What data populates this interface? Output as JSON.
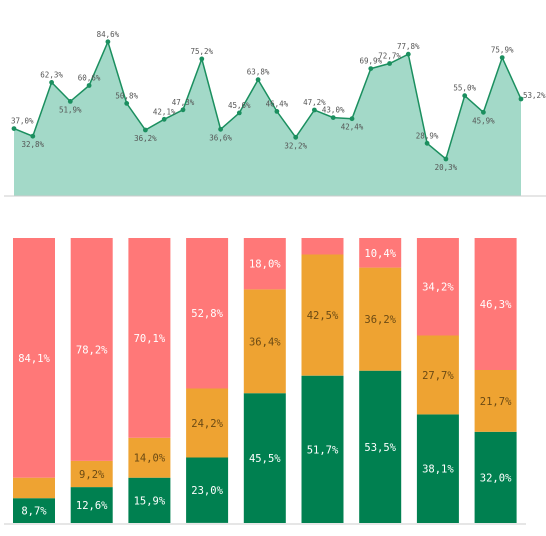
{
  "colors": {
    "area_fill": "#a3d9c8",
    "line": "#1b8f5f",
    "axis": "#cccccc",
    "green": "#008050",
    "orange": "#eea332",
    "red": "#ff7878"
  },
  "chart_data": [
    {
      "type": "area",
      "title": "",
      "xlabel": "",
      "ylabel": "",
      "ylim": [
        0,
        100
      ],
      "grid": false,
      "legend": "none",
      "series": [
        {
          "values": [
            37.0,
            32.8,
            62.3,
            51.9,
            60.6,
            84.6,
            50.8,
            36.2,
            42.1,
            47.3,
            75.2,
            36.6,
            45.6,
            63.8,
            46.4,
            32.2,
            47.2,
            43.0,
            42.4,
            69.9,
            72.7,
            77.8,
            28.9,
            20.3,
            55.0,
            45.9,
            75.9,
            53.2
          ],
          "labels": [
            "37,0%",
            "32,8%",
            "62,3%",
            "51,9%",
            "60,6%",
            "84,6%",
            "50,8%",
            "36,2%",
            "42,1%",
            "47,3%",
            "75,2%",
            "36,6%",
            "45,6%",
            "63,8%",
            "46,4%",
            "32,2%",
            "47,2%",
            "43,0%",
            "42,4%",
            "69,9%",
            "72,7%",
            "77,8%",
            "28,9%",
            "20,3%",
            "55,0%",
            "45,9%",
            "75,9%",
            "53,2%"
          ]
        }
      ]
    },
    {
      "type": "bar",
      "stacked": true,
      "normalized": true,
      "title": "",
      "xlabel": "",
      "ylabel": "",
      "ylim": [
        0,
        100
      ],
      "grid": false,
      "legend": "none",
      "categories": [
        "",
        "",
        "",
        "",
        "",
        "",
        "",
        "",
        ""
      ],
      "series": [
        {
          "color": "green",
          "values": [
            8.7,
            12.6,
            15.9,
            23.0,
            45.5,
            51.7,
            53.5,
            38.1,
            32.0
          ],
          "labels": [
            "8,7%",
            "12,6%",
            "15,9%",
            "23,0%",
            "45,5%",
            "51,7%",
            "53,5%",
            "38,1%",
            "32,0%"
          ]
        },
        {
          "color": "orange",
          "values": [
            7.2,
            9.2,
            14.0,
            24.2,
            36.4,
            42.5,
            36.2,
            27.7,
            21.7
          ],
          "labels": [
            "",
            "9,2%",
            "14,0%",
            "24,2%",
            "36,4%",
            "42,5%",
            "36,2%",
            "27,7%",
            "21,7%"
          ]
        },
        {
          "color": "red",
          "values": [
            84.1,
            78.2,
            70.1,
            52.8,
            18.0,
            5.8,
            10.4,
            34.2,
            46.3
          ],
          "labels": [
            "84,1%",
            "78,2%",
            "70,1%",
            "52,8%",
            "18,0%",
            "",
            "10,4%",
            "34,2%",
            "46,3%"
          ]
        }
      ]
    }
  ]
}
